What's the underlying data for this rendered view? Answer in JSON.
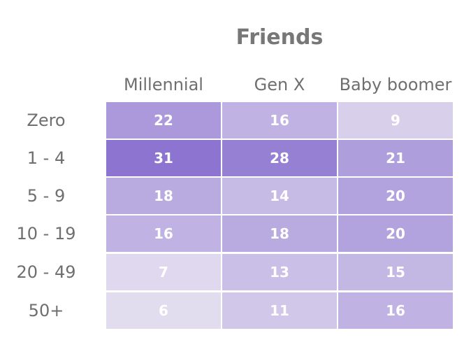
{
  "chart_data": {
    "type": "heatmap",
    "title": "Friends",
    "columns": [
      "Millennial",
      "Gen X",
      "Baby boomer"
    ],
    "rows": [
      "Zero",
      "1 - 4",
      "5 - 9",
      "10 - 19",
      "20 - 49",
      "50+"
    ],
    "values": [
      [
        22,
        16,
        9
      ],
      [
        31,
        28,
        21
      ],
      [
        18,
        14,
        20
      ],
      [
        16,
        18,
        20
      ],
      [
        7,
        13,
        15
      ],
      [
        6,
        11,
        16
      ]
    ],
    "color_low": "#e2dcef",
    "color_high": "#8c74d0",
    "label_color": "#ffffff",
    "text_color": "#6f6f6f",
    "title_color": "#777777"
  }
}
